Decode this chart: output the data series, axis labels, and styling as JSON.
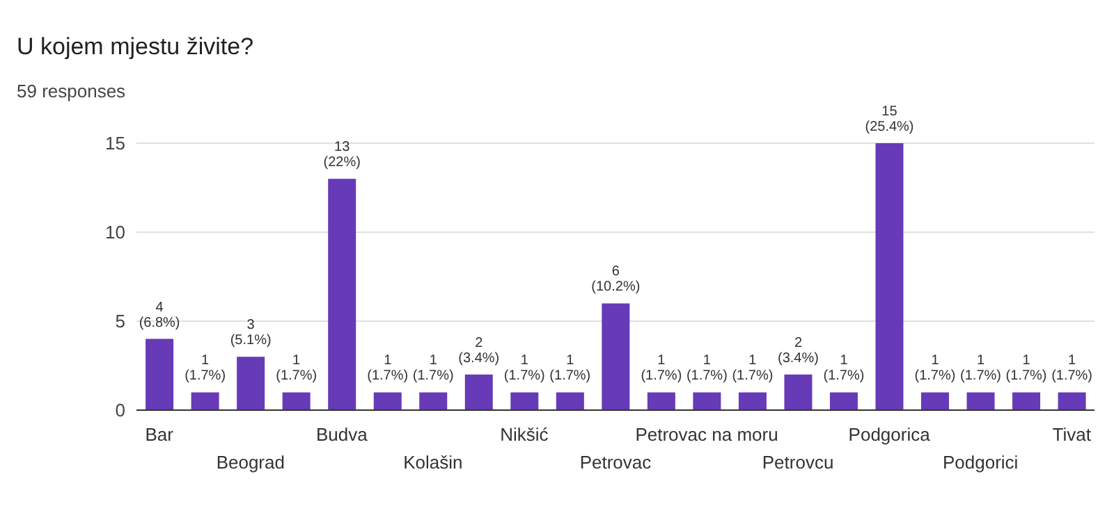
{
  "chart_data": {
    "type": "bar",
    "title": "U kojem mjestu živite?",
    "subtitle": "59 responses",
    "categories": [
      "Bar",
      null,
      "Beograd",
      null,
      "Budva",
      null,
      "Kolašin",
      null,
      "Nikšić",
      null,
      "Petrovac",
      null,
      "Petrovac na moru",
      null,
      "Petrovcu",
      null,
      "Podgorica",
      null,
      "Podgorici",
      null,
      "Tivat"
    ],
    "values": [
      4,
      1,
      3,
      1,
      13,
      1,
      1,
      2,
      1,
      1,
      6,
      1,
      1,
      1,
      2,
      1,
      15,
      1,
      1,
      1,
      1
    ],
    "value_labels": [
      "4 (6.8%)",
      "1 (1.7%)",
      "3 (5.1%)",
      "1 (1.7%)",
      "13 (22%)",
      "1 (1.7%)",
      "1 (1.7%)",
      "2 (3.4%)",
      "1 (1.7%)",
      "1 (1.7%)",
      "6 (10.2%)",
      "1 (1.7%)",
      "1 (1.7%)",
      "1 (1.7%)",
      "2 (3.4%)",
      "1 (1.7%)",
      "15 (25.4%)",
      "1 (1.7%)",
      "1 (1.7%)",
      "1 (1.7%)",
      "1 (1.7%)"
    ],
    "color": "#673ab7",
    "ylim": [
      0,
      15
    ],
    "yticks": [
      0,
      5,
      10,
      15
    ],
    "grid": "y"
  }
}
